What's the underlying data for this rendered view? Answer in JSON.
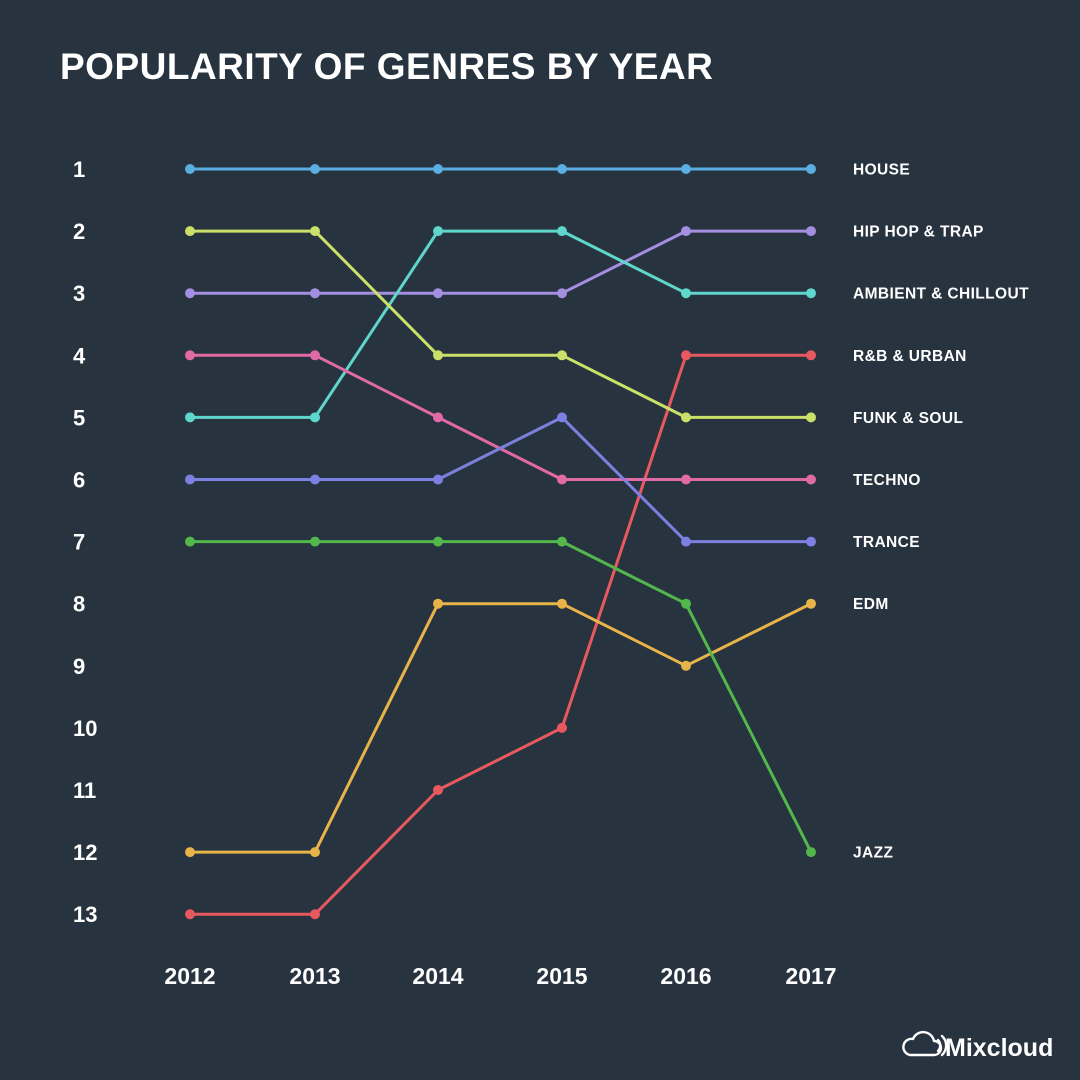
{
  "chart_data": {
    "type": "line",
    "title": "POPULARITY OF GENRES BY YEAR",
    "x": [
      "2012",
      "2013",
      "2014",
      "2015",
      "2016",
      "2017"
    ],
    "y_ticks": [
      "1",
      "2",
      "3",
      "4",
      "5",
      "6",
      "7",
      "8",
      "9",
      "10",
      "11",
      "12",
      "13"
    ],
    "ylim": [
      1,
      13
    ],
    "y_inverted": true,
    "grid": false,
    "legend": "right",
    "series": [
      {
        "name": "HOUSE",
        "color": "#5aaee0",
        "values": [
          1,
          1,
          1,
          1,
          1,
          1
        ]
      },
      {
        "name": "HIP HOP & TRAP",
        "color": "#a48ee0",
        "values": [
          3,
          3,
          3,
          3,
          2,
          2
        ]
      },
      {
        "name": "AMBIENT & CHILLOUT",
        "color": "#5fd6cc",
        "values": [
          5,
          5,
          2,
          2,
          3,
          3
        ]
      },
      {
        "name": "R&B & URBAN",
        "color": "#e8595f",
        "values": [
          13,
          13,
          11,
          10,
          4,
          4
        ]
      },
      {
        "name": "FUNK & SOUL",
        "color": "#cbe06a",
        "values": [
          2,
          2,
          4,
          4,
          5,
          5
        ]
      },
      {
        "name": "TECHNO",
        "color": "#e06aa6",
        "values": [
          4,
          4,
          5,
          6,
          6,
          6
        ]
      },
      {
        "name": "TRANCE",
        "color": "#7c80e0",
        "values": [
          6,
          6,
          6,
          5,
          7,
          7
        ]
      },
      {
        "name": "EDM",
        "color": "#e8b44a",
        "values": [
          12,
          12,
          8,
          8,
          9,
          8
        ]
      },
      {
        "name": "JAZZ",
        "color": "#52b84c",
        "values": [
          7,
          7,
          7,
          7,
          8,
          12
        ]
      }
    ]
  },
  "branding": {
    "logo_text": "Mixcloud",
    "icon": "cloud-icon"
  }
}
